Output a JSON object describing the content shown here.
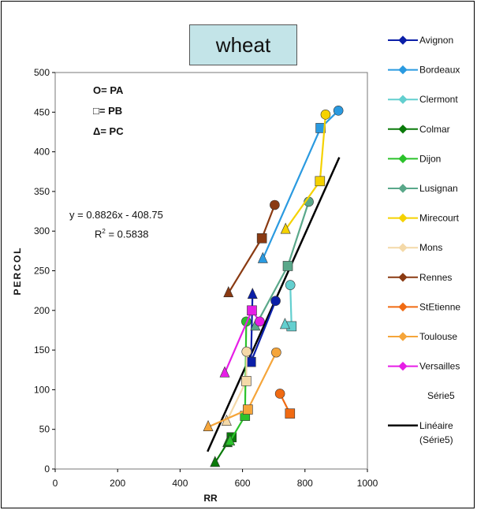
{
  "chart_data": {
    "type": "scatter",
    "title": "wheat",
    "xlabel": "RR",
    "ylabel": "PERCOL",
    "xlim": [
      0,
      1000
    ],
    "ylim": [
      0,
      500
    ],
    "xticks": [
      0,
      200,
      400,
      600,
      800,
      1000
    ],
    "yticks": [
      0,
      50,
      100,
      150,
      200,
      250,
      300,
      350,
      400,
      450,
      500
    ],
    "grid": false,
    "legend_position": "right",
    "marker_key": [
      {
        "symbol": "circle",
        "label": "= PA"
      },
      {
        "symbol": "square",
        "label": "= PB"
      },
      {
        "symbol": "triangle",
        "label": "= PC"
      }
    ],
    "equation": "y = 0.8826x - 408.75",
    "r2_prefix": "R",
    "r2_suffix": " = 0.5838",
    "series": [
      {
        "name": "Avignon",
        "color": "#0b1fa8",
        "marker": "diamond",
        "points": [
          {
            "x": 706,
            "y": 212,
            "shape": "circle"
          },
          {
            "x": 627,
            "y": 135,
            "shape": "square"
          },
          {
            "x": 632,
            "y": 220,
            "shape": "triangle"
          }
        ]
      },
      {
        "name": "Bordeaux",
        "color": "#2a9ae0",
        "marker": "diamond",
        "points": [
          {
            "x": 907,
            "y": 452,
            "shape": "circle"
          },
          {
            "x": 850,
            "y": 430,
            "shape": "square"
          },
          {
            "x": 665,
            "y": 265,
            "shape": "triangle"
          }
        ]
      },
      {
        "name": "Clermont",
        "color": "#63cfcf",
        "marker": "diamond",
        "points": [
          {
            "x": 753,
            "y": 232,
            "shape": "circle"
          },
          {
            "x": 757,
            "y": 180,
            "shape": "square"
          },
          {
            "x": 736,
            "y": 182,
            "shape": "triangle"
          }
        ]
      },
      {
        "name": "Colmar",
        "color": "#0a7a0a",
        "marker": "diamond",
        "points": [
          {
            "x": 565,
            "y": 40,
            "shape": "square"
          },
          {
            "x": 552,
            "y": 33,
            "shape": "triangle"
          },
          {
            "x": 512,
            "y": 8,
            "shape": "triangle"
          }
        ]
      },
      {
        "name": "Dijon",
        "color": "#2bc22b",
        "marker": "diamond",
        "points": [
          {
            "x": 612,
            "y": 186,
            "shape": "circle"
          },
          {
            "x": 608,
            "y": 67,
            "shape": "square"
          },
          {
            "x": 560,
            "y": 35,
            "shape": "triangle"
          }
        ]
      },
      {
        "name": "Lusignan",
        "color": "#5aa88a",
        "marker": "diamond",
        "points": [
          {
            "x": 812,
            "y": 337,
            "shape": "circle"
          },
          {
            "x": 745,
            "y": 256,
            "shape": "square"
          },
          {
            "x": 641,
            "y": 180,
            "shape": "triangle"
          }
        ]
      },
      {
        "name": "Mirecourt",
        "color": "#f5d200",
        "marker": "diamond",
        "points": [
          {
            "x": 866,
            "y": 447,
            "shape": "circle"
          },
          {
            "x": 848,
            "y": 363,
            "shape": "square"
          },
          {
            "x": 738,
            "y": 302,
            "shape": "triangle"
          }
        ]
      },
      {
        "name": "Mons",
        "color": "#f4d9a8",
        "marker": "diamond",
        "points": [
          {
            "x": 613,
            "y": 148,
            "shape": "circle"
          },
          {
            "x": 612,
            "y": 111,
            "shape": "square"
          },
          {
            "x": 549,
            "y": 60,
            "shape": "triangle"
          }
        ]
      },
      {
        "name": "Rennes",
        "color": "#8a3a12",
        "marker": "diamond",
        "points": [
          {
            "x": 703,
            "y": 333,
            "shape": "circle"
          },
          {
            "x": 662,
            "y": 291,
            "shape": "square"
          },
          {
            "x": 555,
            "y": 222,
            "shape": "triangle"
          }
        ]
      },
      {
        "name": "StEtienne",
        "color": "#f06a12",
        "marker": "diamond",
        "points": [
          {
            "x": 720,
            "y": 95,
            "shape": "circle"
          },
          {
            "x": 752,
            "y": 70,
            "shape": "square"
          }
        ]
      },
      {
        "name": "Toulouse",
        "color": "#f5a53a",
        "marker": "diamond",
        "points": [
          {
            "x": 708,
            "y": 147,
            "shape": "circle"
          },
          {
            "x": 617,
            "y": 75,
            "shape": "square"
          },
          {
            "x": 490,
            "y": 53,
            "shape": "triangle"
          }
        ]
      },
      {
        "name": "Versailles",
        "color": "#e61ee6",
        "marker": "diamond",
        "points": [
          {
            "x": 655,
            "y": 186,
            "shape": "circle"
          },
          {
            "x": 630,
            "y": 200,
            "shape": "square"
          },
          {
            "x": 543,
            "y": 121,
            "shape": "triangle"
          }
        ]
      },
      {
        "name": "Série5",
        "color": "",
        "marker": "none",
        "points": []
      },
      {
        "name": "Linéaire (Série5)",
        "color": "#000000",
        "marker": "line",
        "line": [
          [
            488,
            22
          ],
          [
            910,
            393
          ]
        ]
      }
    ]
  }
}
